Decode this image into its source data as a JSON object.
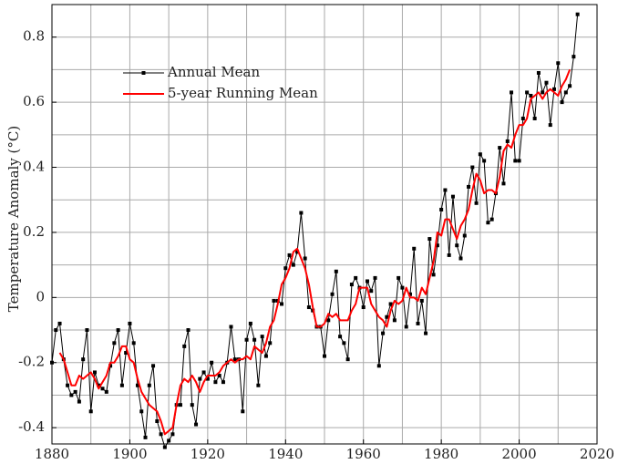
{
  "chart_data": {
    "type": "line",
    "ylabel": "Temperature Anomaly (°C)",
    "x": [
      1880,
      1881,
      1882,
      1883,
      1884,
      1885,
      1886,
      1887,
      1888,
      1889,
      1890,
      1891,
      1892,
      1893,
      1894,
      1895,
      1896,
      1897,
      1898,
      1899,
      1900,
      1901,
      1902,
      1903,
      1904,
      1905,
      1906,
      1907,
      1908,
      1909,
      1910,
      1911,
      1912,
      1913,
      1914,
      1915,
      1916,
      1917,
      1918,
      1919,
      1920,
      1921,
      1922,
      1923,
      1924,
      1925,
      1926,
      1927,
      1928,
      1929,
      1930,
      1931,
      1932,
      1933,
      1934,
      1935,
      1936,
      1937,
      1938,
      1939,
      1940,
      1941,
      1942,
      1943,
      1944,
      1945,
      1946,
      1947,
      1948,
      1949,
      1950,
      1951,
      1952,
      1953,
      1954,
      1955,
      1956,
      1957,
      1958,
      1959,
      1960,
      1961,
      1962,
      1963,
      1964,
      1965,
      1966,
      1967,
      1968,
      1969,
      1970,
      1971,
      1972,
      1973,
      1974,
      1975,
      1976,
      1977,
      1978,
      1979,
      1980,
      1981,
      1982,
      1983,
      1984,
      1985,
      1986,
      1987,
      1988,
      1989,
      1990,
      1991,
      1992,
      1993,
      1994,
      1995,
      1996,
      1997,
      1998,
      1999,
      2000,
      2001,
      2002,
      2003,
      2004,
      2005,
      2006,
      2007,
      2008,
      2009,
      2010,
      2011,
      2012,
      2013,
      2014,
      2015
    ],
    "series": [
      {
        "name": "Annual Mean",
        "color": "#000000",
        "markers": true,
        "values": [
          -0.2,
          -0.1,
          -0.08,
          -0.19,
          -0.27,
          -0.3,
          -0.29,
          -0.32,
          -0.19,
          -0.1,
          -0.35,
          -0.23,
          -0.27,
          -0.28,
          -0.29,
          -0.21,
          -0.14,
          -0.1,
          -0.27,
          -0.17,
          -0.08,
          -0.14,
          -0.27,
          -0.35,
          -0.43,
          -0.27,
          -0.21,
          -0.38,
          -0.42,
          -0.46,
          -0.44,
          -0.42,
          -0.33,
          -0.33,
          -0.15,
          -0.1,
          -0.33,
          -0.39,
          -0.25,
          -0.23,
          -0.25,
          -0.2,
          -0.26,
          -0.24,
          -0.26,
          -0.2,
          -0.09,
          -0.19,
          -0.19,
          -0.35,
          -0.13,
          -0.08,
          -0.13,
          -0.27,
          -0.12,
          -0.18,
          -0.14,
          -0.01,
          -0.01,
          -0.02,
          0.09,
          0.13,
          0.1,
          0.14,
          0.26,
          0.12,
          -0.03,
          -0.04,
          -0.09,
          -0.09,
          -0.18,
          -0.07,
          0.01,
          0.08,
          -0.12,
          -0.14,
          -0.19,
          0.04,
          0.06,
          0.03,
          -0.03,
          0.05,
          0.02,
          0.06,
          -0.21,
          -0.11,
          -0.06,
          -0.02,
          -0.07,
          0.06,
          0.03,
          -0.09,
          0.01,
          0.15,
          -0.08,
          -0.01,
          -0.11,
          0.18,
          0.07,
          0.16,
          0.27,
          0.33,
          0.13,
          0.31,
          0.16,
          0.12,
          0.19,
          0.34,
          0.4,
          0.29,
          0.44,
          0.42,
          0.23,
          0.24,
          0.32,
          0.46,
          0.35,
          0.48,
          0.63,
          0.42,
          0.42,
          0.55,
          0.63,
          0.62,
          0.55,
          0.69,
          0.63,
          0.66,
          0.53,
          0.64,
          0.72,
          0.6,
          0.63,
          0.65,
          0.74,
          0.87
        ]
      },
      {
        "name": "5-year Running Mean",
        "color": "#ff0000",
        "markers": false,
        "values": [
          null,
          null,
          -0.17,
          -0.19,
          -0.23,
          -0.27,
          -0.27,
          -0.24,
          -0.25,
          -0.24,
          -0.23,
          -0.25,
          -0.28,
          -0.26,
          -0.24,
          -0.2,
          -0.2,
          -0.18,
          -0.15,
          -0.15,
          -0.19,
          -0.2,
          -0.25,
          -0.29,
          -0.31,
          -0.33,
          -0.34,
          -0.35,
          -0.38,
          -0.42,
          -0.41,
          -0.4,
          -0.33,
          -0.27,
          -0.25,
          -0.26,
          -0.24,
          -0.26,
          -0.29,
          -0.26,
          -0.24,
          -0.24,
          -0.24,
          -0.23,
          -0.21,
          -0.2,
          -0.19,
          -0.2,
          -0.19,
          -0.19,
          -0.18,
          -0.19,
          -0.15,
          -0.16,
          -0.17,
          -0.14,
          -0.09,
          -0.07,
          -0.02,
          0.04,
          0.06,
          0.09,
          0.14,
          0.15,
          0.12,
          0.09,
          0.04,
          -0.03,
          -0.09,
          -0.09,
          -0.08,
          -0.05,
          -0.06,
          -0.05,
          -0.07,
          -0.07,
          -0.07,
          -0.04,
          -0.02,
          0.03,
          0.03,
          0.03,
          -0.02,
          -0.04,
          -0.06,
          -0.07,
          -0.09,
          -0.04,
          -0.01,
          -0.02,
          -0.01,
          0.03,
          0.0,
          0.0,
          -0.01,
          0.03,
          0.01,
          0.06,
          0.11,
          0.2,
          0.19,
          0.24,
          0.24,
          0.21,
          0.18,
          0.22,
          0.24,
          0.27,
          0.33,
          0.38,
          0.36,
          0.32,
          0.33,
          0.33,
          0.32,
          0.37,
          0.45,
          0.47,
          0.46,
          0.5,
          0.53,
          0.53,
          0.55,
          0.61,
          0.62,
          0.63,
          0.61,
          0.63,
          0.64,
          0.63,
          0.62,
          0.65,
          0.67,
          0.7,
          null,
          null
        ]
      }
    ],
    "xlim": [
      1880,
      2020
    ],
    "xticks": [
      1880,
      1900,
      1920,
      1940,
      1960,
      1980,
      2000,
      2020
    ],
    "xminor_ticks": [
      1890,
      1910,
      1930,
      1950,
      1970,
      1990,
      2010
    ],
    "ylim": [
      -0.45,
      0.9
    ],
    "yticks": [
      -0.4,
      -0.2,
      0,
      0.2,
      0.4,
      0.6,
      0.8
    ],
    "yminor_ticks": [
      -0.3,
      -0.1,
      0.1,
      0.3,
      0.5,
      0.7
    ],
    "grid": true,
    "legend": "upper left"
  }
}
